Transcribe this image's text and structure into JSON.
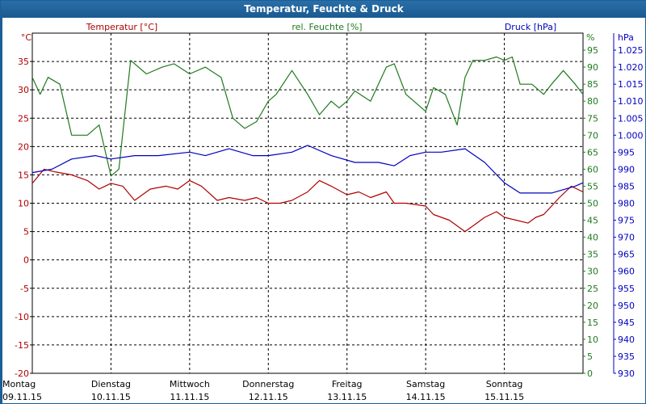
{
  "window": {
    "title": "Temperatur, Feuchte & Druck"
  },
  "colors": {
    "temperature": "#b00000",
    "humidity": "#1f7a1f",
    "pressure": "#0000c0",
    "grid": "#000000",
    "title_bg": "#1c5e96"
  },
  "chart_data": {
    "type": "line",
    "title": "Temperatur, Feuchte & Druck",
    "grid": true,
    "x": {
      "ticks": [
        {
          "day": "Montag",
          "date": "09.11.15"
        },
        {
          "day": "Dienstag",
          "date": "10.11.15"
        },
        {
          "day": "Mittwoch",
          "date": "11.11.15"
        },
        {
          "day": "Donnerstag",
          "date": "12.11.15"
        },
        {
          "day": "Freitag",
          "date": "13.11.15"
        },
        {
          "day": "Samstag",
          "date": "14.11.15"
        },
        {
          "day": "Sonntag",
          "date": "15.11.15"
        }
      ],
      "range_days": [
        0,
        7
      ]
    },
    "axes": {
      "temperature": {
        "unit": "°C",
        "label": "Temperatur [°C]",
        "ylim": [
          -20,
          40
        ],
        "ticks": [
          "-20",
          "-15",
          "-10",
          "-5",
          "0",
          "5",
          "10",
          "15",
          "20",
          "25",
          "30",
          "35"
        ]
      },
      "humidity": {
        "unit": "%",
        "label": "rel. Feuchte [%]",
        "ylim": [
          0,
          100
        ],
        "ticks": [
          "0",
          "5",
          "10",
          "15",
          "20",
          "25",
          "30",
          "35",
          "40",
          "45",
          "50",
          "55",
          "60",
          "65",
          "70",
          "75",
          "80",
          "85",
          "90",
          "95"
        ]
      },
      "pressure": {
        "unit": "hPa",
        "label": "Druck [hPa]",
        "ylim": [
          930,
          1030
        ],
        "ticks": [
          "930",
          "935",
          "940",
          "945",
          "950",
          "955",
          "960",
          "965",
          "970",
          "975",
          "980",
          "985",
          "990",
          "995",
          "1.000",
          "1.005",
          "1.010",
          "1.015",
          "1.020",
          "1.025"
        ]
      }
    },
    "series": [
      {
        "name": "Temperatur [°C]",
        "axis": "temperature",
        "x": [
          0,
          0.15,
          0.3,
          0.5,
          0.7,
          0.85,
          1.0,
          1.15,
          1.3,
          1.5,
          1.7,
          1.85,
          2.0,
          2.15,
          2.35,
          2.5,
          2.7,
          2.85,
          3.0,
          3.15,
          3.3,
          3.5,
          3.65,
          3.8,
          4.0,
          4.15,
          4.3,
          4.5,
          4.6,
          4.75,
          5.0,
          5.1,
          5.3,
          5.5,
          5.65,
          5.75,
          5.9,
          6.0,
          6.15,
          6.3,
          6.4,
          6.5,
          6.7,
          6.85,
          7.0
        ],
        "y": [
          13.5,
          16,
          15.5,
          15,
          14,
          12.5,
          13.5,
          13,
          10.5,
          12.5,
          13,
          12.5,
          14,
          13,
          10.5,
          11,
          10.5,
          11,
          10,
          10,
          10.5,
          12,
          14,
          13,
          11.5,
          12,
          11,
          12,
          10,
          10,
          9.5,
          8,
          7,
          5,
          6.5,
          7.5,
          8.5,
          7.5,
          7,
          6.5,
          7.5,
          8,
          11,
          13,
          12
        ]
      },
      {
        "name": "rel. Feuchte [%]",
        "axis": "humidity",
        "x": [
          0,
          0.1,
          0.2,
          0.35,
          0.5,
          0.7,
          0.85,
          1.0,
          1.1,
          1.25,
          1.45,
          1.65,
          1.8,
          2.0,
          2.2,
          2.4,
          2.55,
          2.7,
          2.85,
          3.0,
          3.1,
          3.3,
          3.5,
          3.65,
          3.8,
          3.9,
          4.0,
          4.1,
          4.3,
          4.5,
          4.6,
          4.75,
          4.85,
          5.0,
          5.1,
          5.25,
          5.4,
          5.5,
          5.6,
          5.75,
          5.9,
          6.0,
          6.1,
          6.2,
          6.35,
          6.5,
          6.6,
          6.75,
          6.9,
          7.0
        ],
        "y": [
          87,
          82,
          87,
          85,
          70,
          70,
          73,
          58,
          60,
          92,
          88,
          90,
          91,
          88,
          90,
          87,
          75,
          72,
          74,
          80,
          82,
          89,
          82,
          76,
          80,
          78,
          80,
          83,
          80,
          90,
          91,
          82,
          80,
          77,
          84,
          82,
          73,
          87,
          92,
          92,
          93,
          92,
          93,
          85,
          85,
          82,
          85,
          89,
          85,
          82
        ]
      },
      {
        "name": "Druck [hPa]",
        "axis": "pressure",
        "x": [
          0,
          0.25,
          0.5,
          0.8,
          1.0,
          1.3,
          1.6,
          2.0,
          2.2,
          2.5,
          2.8,
          3.0,
          3.3,
          3.5,
          3.8,
          4.1,
          4.4,
          4.6,
          4.8,
          5.0,
          5.2,
          5.5,
          5.75,
          6.0,
          6.2,
          6.4,
          6.6,
          6.9,
          7.0
        ],
        "y": [
          989,
          990,
          993,
          994,
          993,
          994,
          994,
          995,
          994,
          996,
          994,
          994,
          995,
          997,
          994,
          992,
          992,
          991,
          994,
          995,
          995,
          996,
          992,
          986,
          983,
          983,
          983,
          985,
          986
        ]
      }
    ]
  }
}
